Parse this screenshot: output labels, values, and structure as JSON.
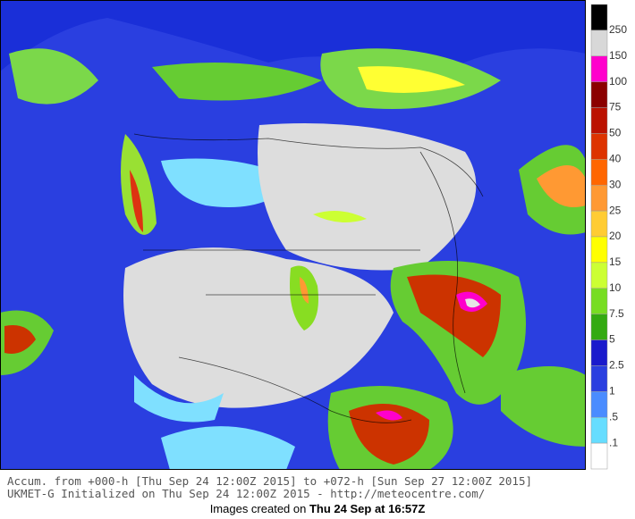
{
  "colorbar": {
    "labels": [
      "250",
      "150",
      "100",
      "75",
      "50",
      "40",
      "30",
      "25",
      "20",
      "15",
      "10",
      "7.5",
      "5",
      "2.5",
      "1",
      ".5",
      ".1"
    ],
    "colors": [
      "#000000",
      "#d8d8d8",
      "#ff00cc",
      "#8b0000",
      "#bb1100",
      "#dd3300",
      "#ff6600",
      "#ff9933",
      "#ffcc33",
      "#ffff00",
      "#ccff33",
      "#77dd22",
      "#33aa11",
      "#1a1acc",
      "#2a3fe0",
      "#4a8cff",
      "#66ddff",
      "#ffffff"
    ]
  },
  "caption": [
    "Accum. from +000-h [Thu Sep 24 12:00Z 2015] to +072-h [Sun Sep 27 12:00Z 2015]",
    "UKMET-G Initialized on Thu Sep 24 12:00Z 2015 - http://meteocentre.com/"
  ],
  "footer": {
    "prefix": "Images created on ",
    "date": "Thu 24 Sep at 16:57Z"
  }
}
